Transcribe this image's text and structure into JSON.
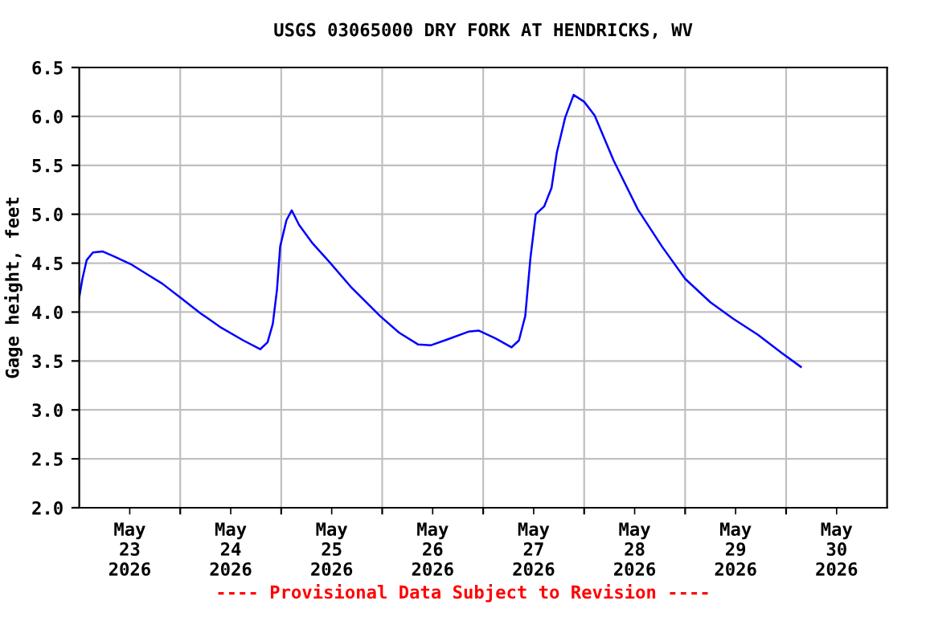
{
  "chart_data": {
    "type": "line",
    "title": "USGS 03065000 DRY FORK AT HENDRICKS, WV",
    "ylabel": "Gage height, feet",
    "annotations": [
      "---- Provisional Data Subject to Revision ----"
    ],
    "xlim": [
      "2026-05-23T00:00",
      "2026-05-31T00:00"
    ],
    "xticks": [
      {
        "value": "2026-05-23T12:00",
        "label": "May\n23\n2026"
      },
      {
        "value": "2026-05-24T00:00",
        "label": null
      },
      {
        "value": "2026-05-24T12:00",
        "label": "May\n24\n2026"
      },
      {
        "value": "2026-05-25T00:00",
        "label": null
      },
      {
        "value": "2026-05-25T12:00",
        "label": "May\n25\n2026"
      },
      {
        "value": "2026-05-26T00:00",
        "label": null
      },
      {
        "value": "2026-05-26T12:00",
        "label": "May\n26\n2026"
      },
      {
        "value": "2026-05-27T00:00",
        "label": null
      },
      {
        "value": "2026-05-27T12:00",
        "label": "May\n27\n2026"
      },
      {
        "value": "2026-05-28T00:00",
        "label": null
      },
      {
        "value": "2026-05-28T12:00",
        "label": "May\n28\n2026"
      },
      {
        "value": "2026-05-29T00:00",
        "label": null
      },
      {
        "value": "2026-05-29T12:00",
        "label": "May\n29\n2026"
      },
      {
        "value": "2026-05-30T00:00",
        "label": null
      },
      {
        "value": "2026-05-30T12:00",
        "label": "May\n30\n2026"
      }
    ],
    "ylim": [
      2.0,
      6.5
    ],
    "yticks": [
      {
        "value": 2.0,
        "label": "2.0"
      },
      {
        "value": 2.5,
        "label": "2.5"
      },
      {
        "value": 3.0,
        "label": "3.0"
      },
      {
        "value": 3.5,
        "label": "3.5"
      },
      {
        "value": 4.0,
        "label": "4.0"
      },
      {
        "value": 4.5,
        "label": "4.5"
      },
      {
        "value": 5.0,
        "label": "5.0"
      },
      {
        "value": 5.5,
        "label": "5.5"
      },
      {
        "value": 6.0,
        "label": "6.0"
      },
      {
        "value": 6.5,
        "label": "6.5"
      }
    ],
    "grid": true,
    "legend": false,
    "series": [
      {
        "color": "#0000ff",
        "x": [
          "2026-05-23T00:00",
          "2026-05-23T00:45",
          "2026-05-23T01:45",
          "2026-05-23T03:15",
          "2026-05-23T05:30",
          "2026-05-23T08:15",
          "2026-05-23T12:15",
          "2026-05-23T16:00",
          "2026-05-23T19:45",
          "2026-05-24T00:00",
          "2026-05-24T04:45",
          "2026-05-24T09:45",
          "2026-05-24T15:00",
          "2026-05-24T19:00",
          "2026-05-24T20:45",
          "2026-05-24T22:00",
          "2026-05-24T23:00",
          "2026-05-24T23:45",
          "2026-05-25T01:15",
          "2026-05-25T02:30",
          "2026-05-25T04:15",
          "2026-05-25T07:30",
          "2026-05-25T11:30",
          "2026-05-25T16:30",
          "2026-05-25T23:30",
          "2026-05-26T04:00",
          "2026-05-26T08:30",
          "2026-05-26T11:30",
          "2026-05-26T15:30",
          "2026-05-26T20:30",
          "2026-05-26T23:00",
          "2026-05-27T03:00",
          "2026-05-27T06:45",
          "2026-05-27T08:30",
          "2026-05-27T10:00",
          "2026-05-27T11:15",
          "2026-05-27T12:30",
          "2026-05-27T14:30",
          "2026-05-27T16:15",
          "2026-05-27T17:30",
          "2026-05-27T19:30",
          "2026-05-27T21:30",
          "2026-05-28T00:00",
          "2026-05-28T02:30",
          "2026-05-28T07:00",
          "2026-05-28T12:45",
          "2026-05-28T18:30",
          "2026-05-29T00:00",
          "2026-05-29T06:00",
          "2026-05-29T11:30",
          "2026-05-29T17:15",
          "2026-05-29T23:00",
          "2026-05-30T03:30"
        ],
        "values": [
          4.15,
          4.34,
          4.53,
          4.61,
          4.62,
          4.57,
          4.49,
          4.39,
          4.29,
          4.15,
          3.99,
          3.84,
          3.71,
          3.62,
          3.69,
          3.88,
          4.23,
          4.67,
          4.94,
          5.04,
          4.89,
          4.7,
          4.51,
          4.26,
          3.96,
          3.79,
          3.67,
          3.66,
          3.72,
          3.8,
          3.81,
          3.73,
          3.64,
          3.71,
          3.96,
          4.56,
          5.0,
          5.08,
          5.27,
          5.63,
          5.99,
          6.22,
          6.15,
          6.01,
          5.55,
          5.05,
          4.67,
          4.34,
          4.1,
          3.93,
          3.77,
          3.58,
          3.44
        ]
      }
    ]
  }
}
